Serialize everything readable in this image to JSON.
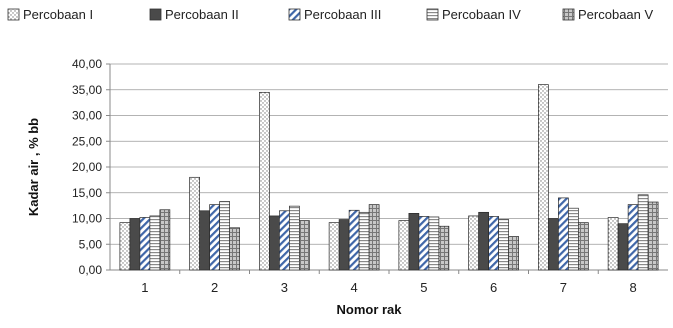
{
  "chart_data": {
    "type": "bar",
    "title": "",
    "xlabel": "Nomor rak",
    "ylabel": "Kadar air , % bb",
    "categories": [
      "1",
      "2",
      "3",
      "4",
      "5",
      "6",
      "7",
      "8"
    ],
    "ylim": [
      0,
      40
    ],
    "yticks": [
      "0,00",
      "5,00",
      "10,00",
      "15,00",
      "20,00",
      "25,00",
      "30,00",
      "35,00",
      "40,00"
    ],
    "grid": true,
    "legend_position": "top",
    "series": [
      {
        "name": "Percobaan I",
        "values": [
          9.2,
          18.0,
          34.5,
          9.2,
          9.6,
          10.5,
          36.0,
          10.2
        ],
        "color": "#ffffff",
        "pattern": "dots"
      },
      {
        "name": "Percobaan II",
        "values": [
          10.0,
          11.5,
          10.5,
          9.8,
          11.0,
          11.2,
          10.0,
          9.0
        ],
        "color": "#555555",
        "pattern": "solid"
      },
      {
        "name": "Percobaan III",
        "values": [
          10.2,
          12.7,
          11.5,
          11.6,
          10.4,
          10.4,
          14.0,
          12.7
        ],
        "color": "#3f66a8",
        "pattern": "diag"
      },
      {
        "name": "Percobaan IV",
        "values": [
          10.5,
          13.3,
          12.4,
          11.2,
          10.3,
          9.8,
          12.0,
          14.6
        ],
        "color": "#bbbbbb",
        "pattern": "hlines"
      },
      {
        "name": "Percobaan V",
        "values": [
          11.7,
          8.2,
          9.6,
          12.7,
          8.5,
          6.5,
          9.2,
          13.2
        ],
        "color": "#888888",
        "pattern": "crosshatch"
      }
    ]
  }
}
